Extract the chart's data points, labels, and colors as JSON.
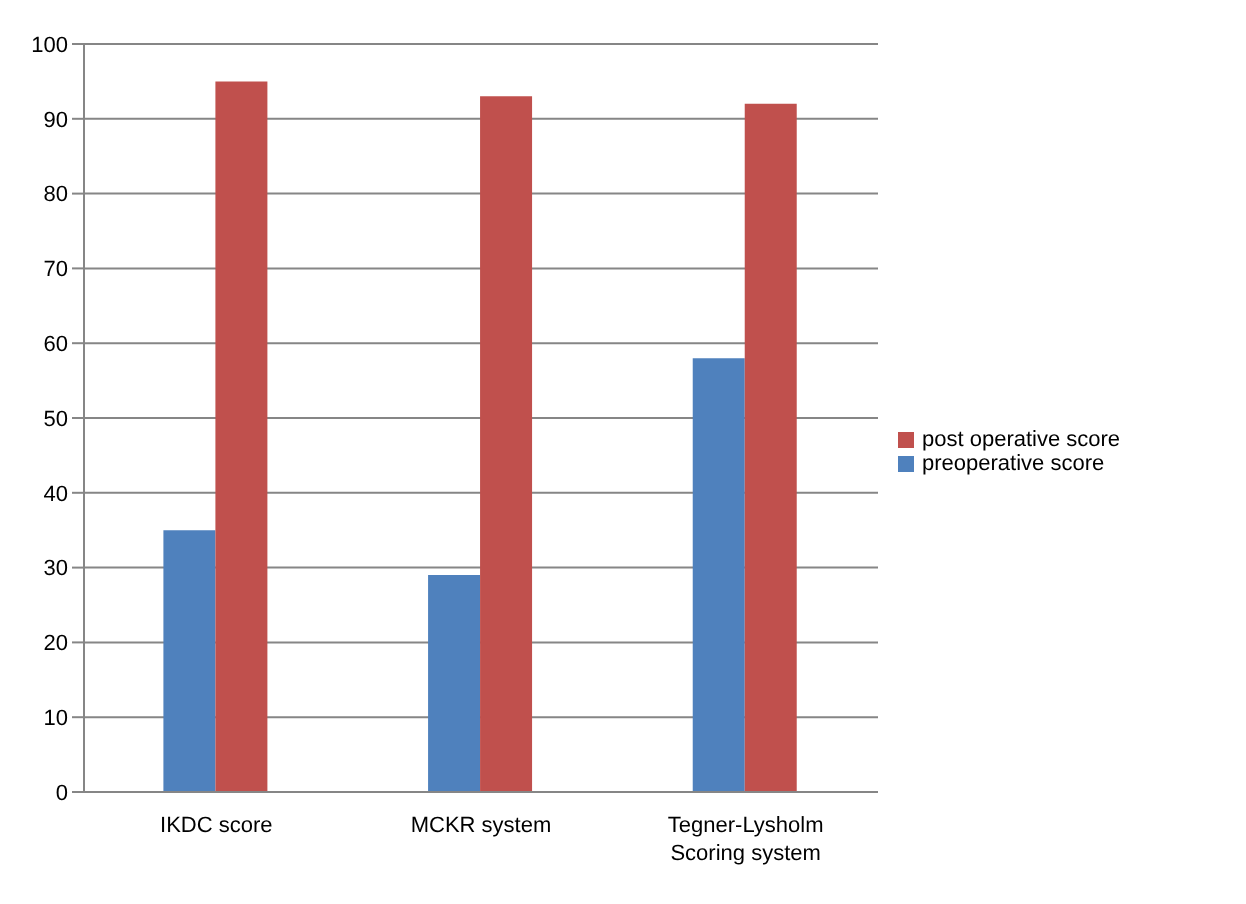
{
  "chart_data": {
    "type": "bar",
    "categories": [
      "IKDC score",
      "MCKR system",
      "Tegner-Lysholm Scoring system"
    ],
    "series": [
      {
        "name": "preoperative score",
        "color": "#4f81bd",
        "values": [
          35,
          29,
          58
        ]
      },
      {
        "name": "post operative score",
        "color": "#c0504d",
        "values": [
          95,
          93,
          92
        ]
      }
    ],
    "ylim": [
      0,
      100
    ],
    "yticks": [
      0,
      10,
      20,
      30,
      40,
      50,
      60,
      70,
      80,
      90,
      100
    ],
    "grid": "y",
    "legend": "right"
  }
}
